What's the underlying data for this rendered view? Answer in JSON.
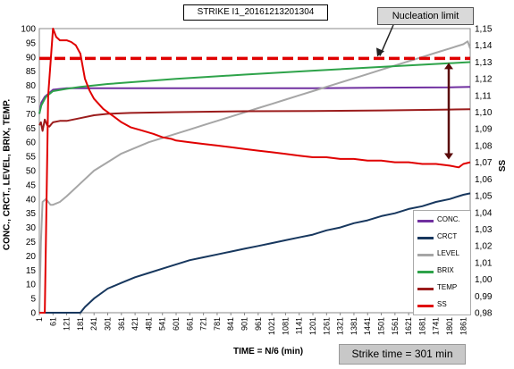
{
  "chart_data": {
    "type": "line",
    "title": "STRIKE I1_20161213201304",
    "xlabel": "TIME = N/6 (min)",
    "ylabel_left": "CONC., CRCT., LEVEL, BRIX, TEMP.",
    "ylabel_right": "SS",
    "x_ticks": [
      "1",
      "61",
      "121",
      "181",
      "241",
      "301",
      "361",
      "421",
      "481",
      "541",
      "601",
      "661",
      "721",
      "781",
      "841",
      "901",
      "961",
      "1021",
      "1081",
      "1141",
      "1201",
      "1261",
      "1321",
      "1381",
      "1441",
      "1501",
      "1561",
      "1621",
      "1681",
      "1741",
      "1801",
      "1861"
    ],
    "xlim": [
      1,
      1891
    ],
    "ylim_left": [
      0,
      100
    ],
    "ylim_right": [
      0.98,
      1.15
    ],
    "yticks_left": [
      "0",
      "5",
      "10",
      "15",
      "20",
      "25",
      "30",
      "35",
      "40",
      "45",
      "50",
      "55",
      "60",
      "65",
      "70",
      "75",
      "80",
      "85",
      "90",
      "95",
      "100"
    ],
    "yticks_right": [
      "0,98",
      "0,99",
      "1,00",
      "1,01",
      "1,02",
      "1,03",
      "1,04",
      "1,05",
      "1,06",
      "1,07",
      "1,08",
      "1,09",
      "1,10",
      "1,11",
      "1,12",
      "1,13",
      "1,14",
      "1,15"
    ],
    "grid": true,
    "legend_position": "bottom-right",
    "series": [
      {
        "name": "CONC.",
        "color": "#7030a0",
        "axis": "left",
        "x": [
          1,
          10,
          25,
          40,
          61,
          121,
          181,
          301,
          601,
          901,
          1201,
          1501,
          1801,
          1891
        ],
        "y": [
          70,
          74,
          76,
          77,
          78.5,
          79,
          79,
          79,
          79,
          79,
          79,
          79.2,
          79.3,
          79.5
        ]
      },
      {
        "name": "CRCT",
        "color": "#17375e",
        "axis": "left",
        "x": [
          1,
          120,
          181,
          201,
          241,
          301,
          361,
          421,
          481,
          541,
          601,
          661,
          721,
          781,
          841,
          901,
          961,
          1021,
          1081,
          1141,
          1201,
          1261,
          1321,
          1381,
          1441,
          1501,
          1561,
          1621,
          1681,
          1741,
          1801,
          1861,
          1891
        ],
        "y": [
          0,
          0,
          0,
          2,
          5,
          8.5,
          10.5,
          12.5,
          14,
          15.5,
          17,
          18.5,
          19.5,
          20.5,
          21.5,
          22.5,
          23.5,
          24.5,
          25.5,
          26.5,
          27.5,
          29,
          30,
          31.5,
          32.5,
          34,
          35,
          36.5,
          37.5,
          39,
          40,
          41.5,
          42
        ]
      },
      {
        "name": "LEVEL",
        "color": "#a6a6a6",
        "axis": "left",
        "x": [
          1,
          8,
          15,
          30,
          50,
          61,
          91,
          121,
          181,
          241,
          301,
          361,
          421,
          481,
          541,
          601,
          661,
          721,
          781,
          841,
          901,
          961,
          1021,
          1081,
          1141,
          1201,
          1261,
          1321,
          1381,
          1441,
          1501,
          1561,
          1621,
          1681,
          1741,
          1801,
          1861,
          1880,
          1891
        ],
        "y": [
          0,
          25,
          39,
          40,
          38,
          38,
          39,
          41,
          45.5,
          50,
          53,
          56,
          58,
          60,
          61.5,
          63,
          64.5,
          66,
          67.5,
          69,
          70.5,
          72,
          73.5,
          75,
          76.5,
          78,
          79.5,
          81,
          82.5,
          84,
          85.5,
          87,
          88.5,
          90,
          91.5,
          93,
          94.5,
          95.5,
          93
        ]
      },
      {
        "name": "BRIX",
        "color": "#2ea34a",
        "axis": "left",
        "x": [
          1,
          10,
          30,
          61,
          121,
          181,
          301,
          601,
          901,
          1201,
          1501,
          1801,
          1891
        ],
        "y": [
          70,
          73,
          76,
          78,
          78.8,
          79.5,
          80.5,
          82.3,
          83.8,
          85.2,
          86.5,
          87.8,
          88.2
        ]
      },
      {
        "name": "TEMP",
        "color": "#9b1c1c",
        "axis": "left",
        "x": [
          1,
          8,
          15,
          25,
          35,
          45,
          55,
          61,
          91,
          121,
          181,
          241,
          301,
          401,
          601,
          901,
          1201,
          1501,
          1801,
          1891
        ],
        "y": [
          66,
          67,
          64,
          68,
          66,
          65.5,
          66.5,
          67,
          67.5,
          67.5,
          68.5,
          69.5,
          70,
          70.3,
          70.6,
          70.9,
          71,
          71.2,
          71.5,
          71.6
        ]
      },
      {
        "name": "SS",
        "color": "#e00000",
        "axis": "right",
        "x": [
          1,
          25,
          40,
          61,
          75,
          91,
          121,
          141,
          161,
          181,
          201,
          221,
          241,
          261,
          281,
          301,
          331,
          361,
          401,
          451,
          501,
          541,
          581,
          601,
          661,
          721,
          781,
          841,
          901,
          961,
          1021,
          1081,
          1141,
          1201,
          1261,
          1321,
          1381,
          1441,
          1501,
          1561,
          1621,
          1681,
          1741,
          1801,
          1841,
          1861,
          1891
        ],
        "y": [
          0.98,
          0.98,
          1.11,
          1.15,
          1.145,
          1.143,
          1.143,
          1.142,
          1.14,
          1.135,
          1.12,
          1.113,
          1.108,
          1.105,
          1.102,
          1.1,
          1.097,
          1.094,
          1.091,
          1.089,
          1.087,
          1.085,
          1.084,
          1.083,
          1.082,
          1.081,
          1.08,
          1.079,
          1.078,
          1.077,
          1.076,
          1.075,
          1.074,
          1.073,
          1.073,
          1.072,
          1.072,
          1.071,
          1.071,
          1.07,
          1.07,
          1.069,
          1.069,
          1.068,
          1.067,
          1.069,
          1.07
        ]
      }
    ],
    "annotations": {
      "nucleation_limit_label": "Nucleation limit",
      "nucleation_limit_value": 89.5,
      "nucleation_limit_color": "#e00000",
      "strike_time_label": "Strike time = 301 min"
    }
  }
}
